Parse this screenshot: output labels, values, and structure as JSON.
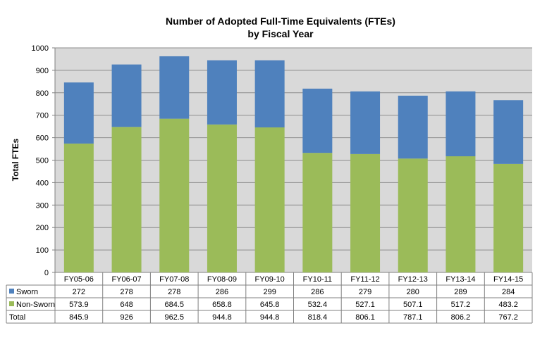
{
  "chart_data": {
    "type": "bar",
    "stacked": true,
    "title": "Number of Adopted Full-Time Equivalents (FTEs)",
    "subtitle": "by Fiscal Year",
    "xlabel": "",
    "ylabel": "Total FTEs",
    "ylim": [
      0,
      1000
    ],
    "yticks": [
      0,
      100,
      200,
      300,
      400,
      500,
      600,
      700,
      800,
      900,
      1000
    ],
    "grid": true,
    "categories": [
      "FY05-06",
      "FY06-07",
      "FY07-08",
      "FY08-09",
      "FY09-10",
      "FY10-11",
      "FY11-12",
      "FY12-13",
      "FY13-14",
      "FY14-15"
    ],
    "series": [
      {
        "name": "Sworn",
        "color": "#4F81BD",
        "values": [
          272,
          278,
          278,
          286,
          299,
          286,
          279,
          280,
          289,
          284
        ],
        "labels": [
          "272",
          "278",
          "278",
          "286",
          "299",
          "286",
          "279",
          "280",
          "289",
          "284"
        ]
      },
      {
        "name": "Non-Sworn",
        "color": "#9BBB59",
        "values": [
          573.9,
          648,
          684.5,
          658.8,
          645.8,
          532.4,
          527.1,
          507.1,
          517.2,
          483.2
        ],
        "labels": [
          "573.9",
          "648",
          "684.5",
          "658.8",
          "645.8",
          "532.4",
          "527.1",
          "507.1",
          "517.2",
          "483.2"
        ]
      }
    ],
    "stack_order": [
      "Non-Sworn",
      "Sworn"
    ],
    "totals": {
      "name": "Total",
      "values": [
        845.9,
        926,
        962.5,
        944.8,
        944.8,
        818.4,
        806.1,
        787.1,
        806.2,
        767.2
      ],
      "labels": [
        "845.9",
        "926",
        "962.5",
        "944.8",
        "944.8",
        "818.4",
        "806.1",
        "787.1",
        "806.2",
        "767.2"
      ]
    },
    "plot_background": "#D9D9D9",
    "data_table": true
  }
}
